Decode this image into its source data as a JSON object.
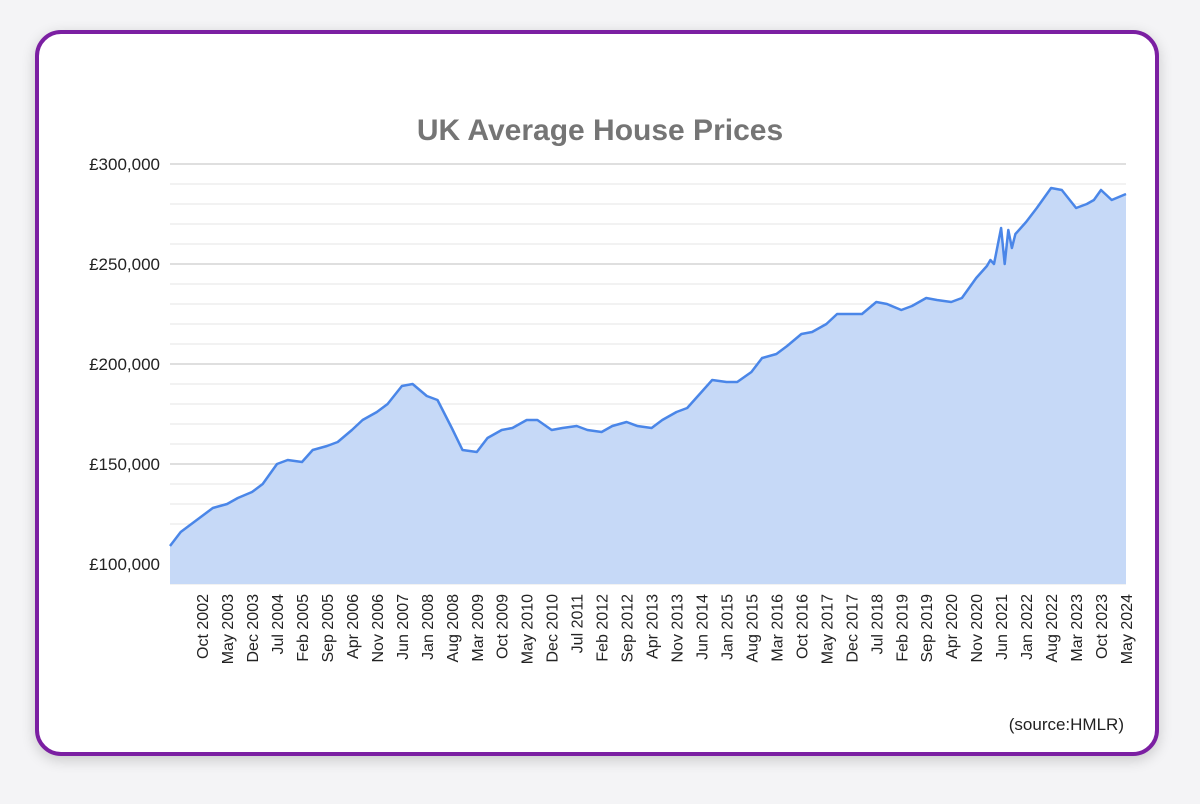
{
  "source_note": "(source:HMLR)",
  "colors": {
    "border": "#7b1fa2",
    "line": "#4a86e8",
    "area": "#c6d9f7",
    "grid_major": "#cccccc",
    "grid_minor": "#e6e6e6",
    "title": "#757575"
  },
  "chart_data": {
    "type": "area",
    "title": "UK Average House Prices",
    "xlabel": "",
    "ylabel": "",
    "ylim": [
      90000,
      300000
    ],
    "x_tick_labels": [
      "Oct 2002",
      "May 2003",
      "Dec 2003",
      "Jul 2004",
      "Feb 2005",
      "Sep 2005",
      "Apr 2006",
      "Nov 2006",
      "Jun 2007",
      "Jan 2008",
      "Aug 2008",
      "Mar 2009",
      "Oct 2009",
      "May 2010",
      "Dec 2010",
      "Jul 2011",
      "Feb 2012",
      "Sep 2012",
      "Apr 2013",
      "Nov 2013",
      "Jun 2014",
      "Jan 2015",
      "Aug 2015",
      "Mar 2016",
      "Oct 2016",
      "May 2017",
      "Dec 2017",
      "Jul 2018",
      "Feb 2019",
      "Sep 2019",
      "Apr 2020",
      "Nov 2020",
      "Jun 2021",
      "Jan 2022",
      "Aug 2022",
      "Mar 2023",
      "Oct 2023",
      "May 2024"
    ],
    "y_tick_labels": [
      "£100,000",
      "£150,000",
      "£200,000",
      "£250,000",
      "£300,000"
    ],
    "y_tick_values": [
      100000,
      150000,
      200000,
      250000,
      300000
    ],
    "grid": true,
    "legend": "none",
    "series": [
      {
        "x": [
          "Jan 2002",
          "Apr 2002",
          "Jul 2002",
          "Oct 2002",
          "Jan 2003",
          "May 2003",
          "Aug 2003",
          "Dec 2003",
          "Mar 2004",
          "Jul 2004",
          "Oct 2004",
          "Feb 2005",
          "May 2005",
          "Sep 2005",
          "Dec 2005",
          "Apr 2006",
          "Jul 2006",
          "Nov 2006",
          "Feb 2007",
          "Jun 2007",
          "Sep 2007",
          "Jan 2008",
          "Apr 2008",
          "Aug 2008",
          "Nov 2008",
          "Mar 2009",
          "Jun 2009",
          "Oct 2009",
          "Jan 2010",
          "May 2010",
          "Aug 2010",
          "Dec 2010",
          "Mar 2011",
          "Jul 2011",
          "Oct 2011",
          "Feb 2012",
          "May 2012",
          "Sep 2012",
          "Dec 2012",
          "Apr 2013",
          "Jul 2013",
          "Nov 2013",
          "Feb 2014",
          "Jun 2014",
          "Sep 2014",
          "Jan 2015",
          "Apr 2015",
          "Aug 2015",
          "Nov 2015",
          "Mar 2016",
          "Jun 2016",
          "Oct 2016",
          "Jan 2017",
          "May 2017",
          "Aug 2017",
          "Dec 2017",
          "Mar 2018",
          "Jul 2018",
          "Oct 2018",
          "Feb 2019",
          "May 2019",
          "Sep 2019",
          "Dec 2019",
          "Apr 2020",
          "Jul 2020",
          "Nov 2020",
          "Feb 2021",
          "Mar 2021",
          "Apr 2021",
          "Jun 2021",
          "Jul 2021",
          "Aug 2021",
          "Sep 2021",
          "Oct 2021",
          "Jan 2022",
          "Apr 2022",
          "Aug 2022",
          "Nov 2022",
          "Mar 2023",
          "Jun 2023",
          "Aug 2023",
          "Oct 2023",
          "Jan 2024",
          "May 2024"
        ],
        "values": [
          109000,
          116000,
          120000,
          124000,
          128000,
          130000,
          133000,
          136000,
          140000,
          150000,
          152000,
          151000,
          157000,
          159000,
          161000,
          167000,
          172000,
          176000,
          180000,
          189000,
          190000,
          184000,
          182000,
          168000,
          157000,
          156000,
          163000,
          167000,
          168000,
          172000,
          172000,
          167000,
          168000,
          169000,
          167000,
          166000,
          169000,
          171000,
          169000,
          168000,
          172000,
          176000,
          178000,
          186000,
          192000,
          191000,
          191000,
          196000,
          203000,
          205000,
          209000,
          215000,
          216000,
          220000,
          225000,
          225000,
          225000,
          231000,
          230000,
          227000,
          229000,
          233000,
          232000,
          231000,
          233000,
          243000,
          249000,
          252000,
          250000,
          268000,
          250000,
          267000,
          258000,
          265000,
          271000,
          278000,
          288000,
          287000,
          278000,
          280000,
          282000,
          287000,
          282000,
          285000
        ]
      }
    ]
  }
}
